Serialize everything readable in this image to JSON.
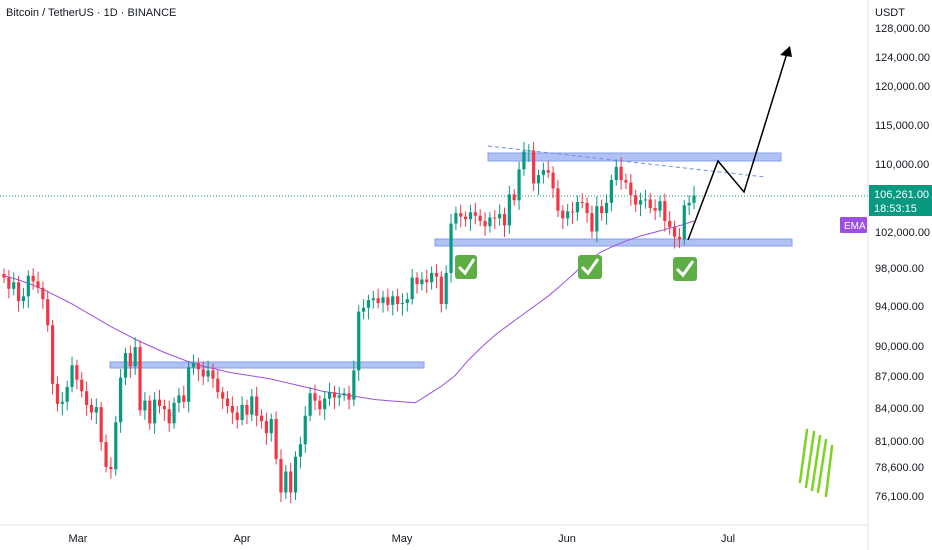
{
  "header": {
    "title": "Bitcoin / TetherUS · 1D · BINANCE",
    "currency": "USDT"
  },
  "price_badge": {
    "price": "106,261.00",
    "countdown": "18:53:15"
  },
  "ema_badge": "EMA",
  "colors": {
    "up": "#089981",
    "down": "#f23645",
    "ema": "#9c4fe0",
    "zone": "#8ea8ef",
    "last_price": "#089981",
    "check": "#5fae45"
  },
  "chart_data": {
    "type": "candlestick",
    "symbol": "BTC/USDT",
    "interval": "1D",
    "y_axis_ticks": [
      "128,000.00",
      "124,000.00",
      "120,000.00",
      "115,000.00",
      "110,000.00",
      "102,000.00",
      "98,000.00",
      "94,000.00",
      "90,000.00",
      "87,000.00",
      "84,000.00",
      "81,000.00",
      "78,600.00",
      "76,100.00"
    ],
    "x_axis_ticks": [
      "Mar",
      "Apr",
      "May",
      "Jun",
      "Jul"
    ],
    "y_scale": "log",
    "ylim": [
      73500,
      135000
    ],
    "last_price": 106261,
    "candles_daily_close_approx": [
      97000,
      95800,
      96500,
      94500,
      95000,
      97200,
      96600,
      95900,
      94700,
      92000,
      86200,
      84300,
      84500,
      85900,
      88000,
      86600,
      85500,
      84200,
      83500,
      84000,
      80800,
      78600,
      78400,
      82600,
      86800,
      89200,
      87900,
      89800,
      83700,
      84600,
      82500,
      84700,
      84100,
      83800,
      82500,
      84400,
      85100,
      84500,
      87800,
      88200,
      87600,
      86900,
      87500,
      86700,
      85400,
      84800,
      84100,
      83500,
      82800,
      84200,
      83300,
      85000,
      83200,
      82700,
      81600,
      82900,
      79300,
      76400,
      78200,
      76400,
      79500,
      80600,
      83200,
      85300,
      84600,
      83800,
      84800,
      85400,
      84900,
      85100,
      85300,
      84700,
      87500,
      93400,
      93800,
      94600,
      94800,
      94300,
      94900,
      94100,
      95000,
      94200,
      94300,
      94700,
      97000,
      96300,
      96800,
      96500,
      97500,
      97100,
      94200,
      97500,
      103000,
      104200,
      103800,
      103500,
      104300,
      103900,
      103300,
      102700,
      103700,
      103600,
      104100,
      102800,
      106400,
      105700,
      109400,
      111600,
      111700,
      107700,
      108700,
      109300,
      109000,
      107100,
      104500,
      103600,
      104400,
      104300,
      105500,
      105400,
      104200,
      102100,
      105000,
      104200,
      105400,
      108100,
      109700,
      108100,
      107800,
      106300,
      105200,
      105700,
      105800,
      104800,
      104500,
      105600,
      103300,
      102600,
      101500,
      101200,
      105100,
      105400,
      106261
    ],
    "ema": {
      "label": "EMA",
      "approx_values": [
        97200,
        96800,
        96300,
        95700,
        95000,
        94300,
        93500,
        92700,
        91900,
        91200,
        90500,
        89900,
        89300,
        88800,
        88300,
        87900,
        87600,
        87300,
        87100,
        86900,
        86700,
        86400,
        86100,
        85800,
        85500,
        85300,
        85100,
        84900,
        84700,
        84600,
        84500,
        84400,
        85200,
        86000,
        87000,
        88500,
        89800,
        91000,
        92000,
        93000,
        94000,
        95000,
        96200,
        97500,
        98800,
        99800,
        100500,
        101100,
        101600,
        102000,
        102400,
        102800,
        103300
      ]
    },
    "zones": [
      {
        "name": "resistance",
        "low": 110200,
        "high": 111000
      },
      {
        "name": "support",
        "low": 101500,
        "high": 102200
      },
      {
        "name": "march-resistance",
        "low": 87600,
        "high": 88200
      }
    ],
    "projection_path": "up to ~110,000, pullback to ~106,900, then toward ~125,500",
    "markers": [
      "check",
      "check",
      "check"
    ],
    "grid": false,
    "legend": "none"
  }
}
